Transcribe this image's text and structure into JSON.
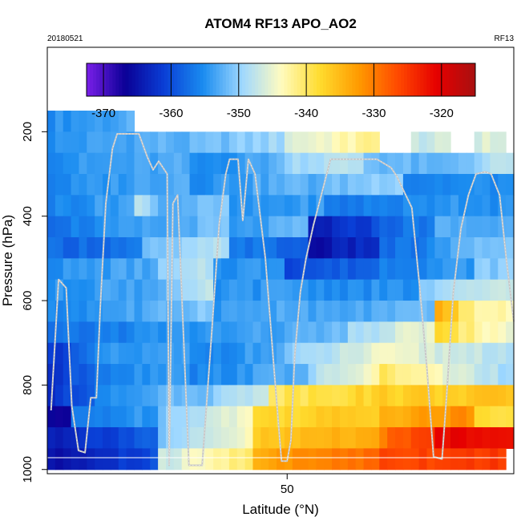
{
  "chart_data": {
    "type": "heatmap",
    "title": "ATOM4 RF13 APO_AO2",
    "subtitle_left": "20180521",
    "subtitle_right": "RF13",
    "xlabel": "Latitude (°N)",
    "ylabel": "Pressure (hPa)",
    "x_ticks": [
      50
    ],
    "x_tick_labels": [
      "50"
    ],
    "xlim": [
      24.6,
      74.0
    ],
    "y_ticks": [
      200,
      400,
      600,
      800,
      1000
    ],
    "y_tick_labels": [
      "200",
      "400",
      "600",
      "800",
      "1000"
    ],
    "ylim": [
      1010,
      0
    ],
    "colorbar": {
      "range": [
        -372.5,
        -315
      ],
      "ticks": [
        -370,
        -360,
        -350,
        -340,
        -330,
        -320
      ],
      "tick_labels": [
        "-370",
        "-360",
        "-350",
        "-340",
        "-330",
        "-320"
      ],
      "colors": [
        "#7a1fe8",
        "#0a0096",
        "#0a3fd6",
        "#1a8cf0",
        "#9fd8ff",
        "#fffbc0",
        "#ffdc2e",
        "#ff9a00",
        "#ff4a00",
        "#e60000",
        "#a81010"
      ]
    },
    "grid": false,
    "legend": "colorbar at top inside plot",
    "cell_layers_hpa": [
      [
        200,
        150,
        200
      ],
      [
        250,
        200,
        250
      ],
      [
        300,
        250,
        300
      ],
      [
        350,
        300,
        350
      ],
      [
        400,
        350,
        400
      ],
      [
        450,
        400,
        450
      ],
      [
        500,
        450,
        500
      ],
      [
        550,
        500,
        550
      ],
      [
        600,
        550,
        600
      ],
      [
        650,
        600,
        650
      ],
      [
        700,
        650,
        700
      ],
      [
        750,
        700,
        750
      ],
      [
        800,
        750,
        800
      ],
      [
        850,
        800,
        850
      ],
      [
        900,
        850,
        900
      ],
      [
        950,
        900,
        950
      ],
      [
        1000,
        950,
        1000
      ]
    ],
    "value_rows": [
      {
        "p": 200,
        "segments": [
          [
            24.6,
            33.5,
            -355,
            -353
          ]
        ]
      },
      {
        "p": 250,
        "segments": [
          [
            24.6,
            38,
            -355,
            -352
          ],
          [
            38,
            50,
            -353,
            -349
          ],
          [
            50,
            57,
            -346,
            -343
          ],
          [
            57,
            60,
            -341,
            -343
          ],
          [
            63,
            67,
            -347,
            -347
          ],
          [
            70,
            73,
            -346,
            -346
          ]
        ]
      },
      {
        "p": 300,
        "segments": [
          [
            24.6,
            40,
            -355,
            -353
          ],
          [
            40,
            50,
            -356,
            -352
          ],
          [
            50,
            58,
            -349,
            -348
          ],
          [
            58,
            66,
            -351,
            -353
          ],
          [
            66,
            74,
            -353,
            -347
          ]
        ]
      },
      {
        "p": 350,
        "segments": [
          [
            24.6,
            40,
            -356,
            -352
          ],
          [
            40,
            52,
            -355,
            -352
          ],
          [
            52,
            62,
            -353,
            -349
          ],
          [
            62,
            74,
            -356,
            -355
          ]
        ]
      },
      {
        "p": 400,
        "segments": [
          [
            24.6,
            34,
            -356,
            -353
          ],
          [
            34,
            36,
            -348,
            -350
          ],
          [
            36,
            44,
            -353,
            -351
          ],
          [
            44,
            54,
            -355,
            -354
          ],
          [
            54,
            66,
            -357,
            -355
          ],
          [
            66,
            74,
            -354,
            -355
          ]
        ]
      },
      {
        "p": 450,
        "segments": [
          [
            24.6,
            35,
            -357,
            -354
          ],
          [
            35,
            44,
            -354,
            -351
          ],
          [
            44,
            52,
            -355,
            -352
          ],
          [
            52,
            60,
            -365,
            -360
          ],
          [
            60,
            66,
            -358,
            -356
          ],
          [
            66,
            74,
            -353,
            -353
          ]
        ]
      },
      {
        "p": 500,
        "segments": [
          [
            24.6,
            35,
            -358,
            -357
          ],
          [
            35,
            44,
            -352,
            -348
          ],
          [
            44,
            52,
            -356,
            -359
          ],
          [
            52,
            60,
            -366,
            -362
          ],
          [
            60,
            66,
            -358,
            -356
          ],
          [
            66,
            74,
            -354,
            -350
          ]
        ]
      },
      {
        "p": 550,
        "segments": [
          [
            24.6,
            36,
            -355,
            -353
          ],
          [
            36,
            42,
            -351,
            -348
          ],
          [
            42,
            50,
            -355,
            -354
          ],
          [
            50,
            60,
            -360,
            -358
          ],
          [
            60,
            70,
            -356,
            -354
          ],
          [
            70,
            74,
            -351,
            -350
          ]
        ]
      },
      {
        "p": 600,
        "segments": [
          [
            24.6,
            34,
            -355,
            -353
          ],
          [
            34,
            42,
            -354,
            -348
          ],
          [
            42,
            52,
            -355,
            -354
          ],
          [
            52,
            64,
            -355,
            -355
          ],
          [
            64,
            74,
            -351,
            -346
          ]
        ]
      },
      {
        "p": 650,
        "segments": [
          [
            24.6,
            34,
            -356,
            -353
          ],
          [
            34,
            42,
            -354,
            -350
          ],
          [
            42,
            52,
            -354,
            -353
          ],
          [
            52,
            66,
            -354,
            -352
          ],
          [
            66,
            68,
            -334,
            -336
          ],
          [
            68,
            74,
            -341,
            -344
          ]
        ]
      },
      {
        "p": 700,
        "segments": [
          [
            24.6,
            36,
            -358,
            -355
          ],
          [
            36,
            46,
            -355,
            -354
          ],
          [
            46,
            56,
            -354,
            -352
          ],
          [
            56,
            66,
            -350,
            -344
          ],
          [
            66,
            74,
            -338,
            -346
          ]
        ]
      },
      {
        "p": 750,
        "segments": [
          [
            24.6,
            30,
            -362,
            -357
          ],
          [
            30,
            40,
            -355,
            -354
          ],
          [
            40,
            50,
            -356,
            -353
          ],
          [
            50,
            60,
            -351,
            -345
          ],
          [
            60,
            74,
            -345,
            -348
          ]
        ]
      },
      {
        "p": 800,
        "segments": [
          [
            24.6,
            30,
            -363,
            -357
          ],
          [
            30,
            40,
            -356,
            -353
          ],
          [
            40,
            52,
            -356,
            -352
          ],
          [
            52,
            60,
            -350,
            -343
          ],
          [
            60,
            74,
            -340,
            -350
          ]
        ]
      },
      {
        "p": 850,
        "segments": [
          [
            24.6,
            30,
            -363,
            -358
          ],
          [
            30,
            40,
            -355,
            -351
          ],
          [
            40,
            48,
            -352,
            -346
          ],
          [
            48,
            60,
            -340,
            -337
          ],
          [
            60,
            74,
            -337,
            -336
          ]
        ]
      },
      {
        "p": 900,
        "segments": [
          [
            24.6,
            27,
            -366,
            -368
          ],
          [
            27,
            36,
            -357,
            -354
          ],
          [
            36,
            46,
            -351,
            -344
          ],
          [
            46,
            60,
            -338,
            -336
          ],
          [
            60,
            70,
            -334,
            -331
          ],
          [
            70,
            74,
            -338,
            -338
          ]
        ]
      },
      {
        "p": 950,
        "segments": [
          [
            24.6,
            36,
            -364,
            -358
          ],
          [
            36,
            46,
            -352,
            -344
          ],
          [
            46,
            60,
            -337,
            -333
          ],
          [
            60,
            66,
            -330,
            -324
          ],
          [
            66,
            74,
            -321,
            -321
          ]
        ]
      },
      {
        "p": 1000,
        "segments": [
          [
            24.6,
            36,
            -366,
            -360
          ],
          [
            36,
            46,
            -348,
            -340
          ],
          [
            46,
            60,
            -334,
            -328
          ],
          [
            60,
            73.5,
            -326,
            -325
          ]
        ]
      }
    ],
    "flight_track": [
      [
        25.0,
        860
      ],
      [
        25.8,
        550
      ],
      [
        26.6,
        570
      ],
      [
        27.2,
        850
      ],
      [
        27.9,
        955
      ],
      [
        28.6,
        960
      ],
      [
        29.2,
        830
      ],
      [
        29.8,
        830
      ],
      [
        30.2,
        620
      ],
      [
        30.8,
        370
      ],
      [
        31.5,
        240
      ],
      [
        32.0,
        205
      ],
      [
        34.3,
        205
      ],
      [
        35.2,
        260
      ],
      [
        35.8,
        290
      ],
      [
        36.4,
        270
      ],
      [
        37.3,
        300
      ],
      [
        37.5,
        990
      ],
      [
        37.9,
        370
      ],
      [
        38.4,
        350
      ],
      [
        39.6,
        990
      ],
      [
        41.0,
        990
      ],
      [
        42.0,
        680
      ],
      [
        42.8,
        420
      ],
      [
        43.5,
        300
      ],
      [
        43.9,
        265
      ],
      [
        44.8,
        265
      ],
      [
        45.3,
        410
      ],
      [
        45.9,
        265
      ],
      [
        46.6,
        300
      ],
      [
        47.7,
        500
      ],
      [
        48.6,
        760
      ],
      [
        49.4,
        980
      ],
      [
        50.0,
        980
      ],
      [
        50.4,
        930
      ],
      [
        50.8,
        730
      ],
      [
        51.4,
        580
      ],
      [
        52.0,
        500
      ],
      [
        52.8,
        420
      ],
      [
        53.5,
        360
      ],
      [
        54.6,
        265
      ],
      [
        59.5,
        265
      ],
      [
        61.0,
        285
      ],
      [
        61.6,
        305
      ],
      [
        63.2,
        380
      ],
      [
        64.0,
        560
      ],
      [
        64.8,
        760
      ],
      [
        65.5,
        970
      ],
      [
        66.4,
        975
      ],
      [
        66.9,
        820
      ],
      [
        67.6,
        580
      ],
      [
        68.4,
        430
      ],
      [
        69.2,
        350
      ],
      [
        70.0,
        300
      ],
      [
        71.0,
        295
      ],
      [
        71.6,
        300
      ],
      [
        72.5,
        350
      ],
      [
        73.2,
        500
      ],
      [
        74.0,
        650
      ]
    ]
  }
}
